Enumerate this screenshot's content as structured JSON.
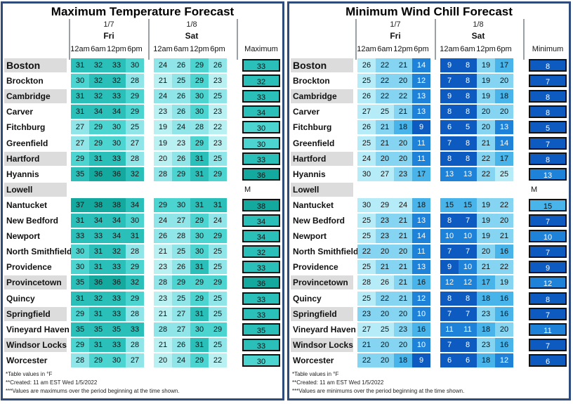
{
  "colors": {
    "max_scale": [
      "#b9f0f2",
      "#8fe5e7",
      "#4cd4d1",
      "#2bbfb9",
      "#14a99f"
    ],
    "min_scale": [
      "#b6ecf8",
      "#84d4f2",
      "#48b4ea",
      "#1e82d9",
      "#0d5bc1"
    ],
    "border": "#2f4b7c"
  },
  "panels": [
    {
      "id": "max",
      "title": "Maximum Temperature Forecast",
      "days": [
        {
          "date": "1/7",
          "name": "Fri"
        },
        {
          "date": "1/8",
          "name": "Sat"
        }
      ],
      "hours": [
        "12am",
        "6am",
        "12pm",
        "6pm",
        "12am",
        "6am",
        "12pm",
        "6pm"
      ],
      "summary_label": "Maximum",
      "footnotes": [
        "*Table values in °F",
        "**Created: 11 am EST Wed 1/5/2022",
        "***Values are maximums over the period beginning at the time shown."
      ]
    },
    {
      "id": "min",
      "title": "Minimum Wind Chill Forecast",
      "days": [
        {
          "date": "1/7",
          "name": "Fri"
        },
        {
          "date": "1/8",
          "name": "Sat"
        }
      ],
      "hours": [
        "12am",
        "6am",
        "12pm",
        "6pm",
        "12am",
        "6am",
        "12pm",
        "6pm"
      ],
      "summary_label": "Minimum",
      "footnotes": [
        "*Table values in °F",
        "**Created: 11 am EST Wed 1/5/2022",
        "***Values are minimums over the period beginning at the time shown."
      ]
    }
  ],
  "chart_data": [
    {
      "type": "table",
      "title": "Maximum Temperature Forecast",
      "columns": [
        "12am",
        "6am",
        "12pm",
        "6pm",
        "12am",
        "6am",
        "12pm",
        "6pm"
      ],
      "summary_column": "Maximum",
      "missing_label": "M",
      "rows": [
        {
          "name": "Boston",
          "values": [
            31,
            32,
            33,
            30,
            24,
            26,
            29,
            26
          ],
          "summary": 33
        },
        {
          "name": "Brockton",
          "values": [
            30,
            32,
            32,
            28,
            21,
            25,
            29,
            23
          ],
          "summary": 32
        },
        {
          "name": "Cambridge",
          "values": [
            31,
            32,
            33,
            29,
            24,
            26,
            30,
            25
          ],
          "summary": 33
        },
        {
          "name": "Carver",
          "values": [
            31,
            34,
            34,
            29,
            23,
            26,
            30,
            23
          ],
          "summary": 34
        },
        {
          "name": "Fitchburg",
          "values": [
            27,
            29,
            30,
            25,
            19,
            24,
            28,
            22
          ],
          "summary": 30
        },
        {
          "name": "Greenfield",
          "values": [
            27,
            29,
            30,
            27,
            19,
            23,
            29,
            23
          ],
          "summary": 30
        },
        {
          "name": "Hartford",
          "values": [
            29,
            31,
            33,
            28,
            20,
            26,
            31,
            25
          ],
          "summary": 33
        },
        {
          "name": "Hyannis",
          "values": [
            35,
            36,
            36,
            32,
            28,
            29,
            31,
            29
          ],
          "summary": 36
        },
        {
          "name": "Lowell",
          "values": null,
          "summary": null
        },
        {
          "name": "Nantucket",
          "values": [
            37,
            38,
            38,
            34,
            29,
            30,
            31,
            31
          ],
          "summary": 38
        },
        {
          "name": "New Bedford",
          "values": [
            31,
            34,
            34,
            30,
            24,
            27,
            29,
            24
          ],
          "summary": 34
        },
        {
          "name": "Newport",
          "values": [
            33,
            33,
            34,
            31,
            26,
            28,
            30,
            29
          ],
          "summary": 34
        },
        {
          "name": "North Smithfield",
          "values": [
            30,
            31,
            32,
            28,
            21,
            25,
            30,
            25
          ],
          "summary": 32
        },
        {
          "name": "Providence",
          "values": [
            30,
            31,
            33,
            29,
            23,
            26,
            31,
            25
          ],
          "summary": 33
        },
        {
          "name": "Provincetown",
          "values": [
            35,
            36,
            36,
            32,
            28,
            29,
            29,
            29
          ],
          "summary": 36
        },
        {
          "name": "Quincy",
          "values": [
            31,
            32,
            33,
            29,
            23,
            25,
            29,
            25
          ],
          "summary": 33
        },
        {
          "name": "Springfield",
          "values": [
            29,
            31,
            33,
            28,
            21,
            27,
            31,
            25
          ],
          "summary": 33
        },
        {
          "name": "Vineyard Haven",
          "values": [
            35,
            35,
            35,
            33,
            28,
            27,
            30,
            29
          ],
          "summary": 35
        },
        {
          "name": "Windsor Locks",
          "values": [
            29,
            31,
            33,
            28,
            21,
            26,
            31,
            25
          ],
          "summary": 33
        },
        {
          "name": "Worcester",
          "values": [
            28,
            29,
            30,
            27,
            20,
            24,
            29,
            22
          ],
          "summary": 30
        }
      ]
    },
    {
      "type": "table",
      "title": "Minimum Wind Chill Forecast",
      "columns": [
        "12am",
        "6am",
        "12pm",
        "6pm",
        "12am",
        "6am",
        "12pm",
        "6pm"
      ],
      "summary_column": "Minimum",
      "missing_label": "M",
      "rows": [
        {
          "name": "Boston",
          "values": [
            26,
            22,
            21,
            14,
            9,
            8,
            19,
            17
          ],
          "summary": 8
        },
        {
          "name": "Brockton",
          "values": [
            25,
            22,
            20,
            12,
            7,
            8,
            19,
            20
          ],
          "summary": 7
        },
        {
          "name": "Cambridge",
          "values": [
            26,
            22,
            22,
            13,
            9,
            8,
            19,
            18
          ],
          "summary": 8
        },
        {
          "name": "Carver",
          "values": [
            27,
            25,
            21,
            13,
            8,
            8,
            20,
            20
          ],
          "summary": 8
        },
        {
          "name": "Fitchburg",
          "values": [
            26,
            21,
            18,
            9,
            6,
            5,
            20,
            13
          ],
          "summary": 5
        },
        {
          "name": "Greenfield",
          "values": [
            25,
            21,
            20,
            11,
            7,
            8,
            21,
            14
          ],
          "summary": 7
        },
        {
          "name": "Hartford",
          "values": [
            24,
            20,
            20,
            11,
            8,
            8,
            22,
            17
          ],
          "summary": 8
        },
        {
          "name": "Hyannis",
          "values": [
            30,
            27,
            23,
            17,
            13,
            13,
            22,
            25
          ],
          "summary": 13
        },
        {
          "name": "Lowell",
          "values": null,
          "summary": null
        },
        {
          "name": "Nantucket",
          "values": [
            30,
            29,
            24,
            18,
            15,
            15,
            19,
            22
          ],
          "summary": 15
        },
        {
          "name": "New Bedford",
          "values": [
            25,
            23,
            21,
            13,
            8,
            7,
            19,
            20
          ],
          "summary": 7
        },
        {
          "name": "Newport",
          "values": [
            25,
            23,
            21,
            14,
            10,
            10,
            19,
            21
          ],
          "summary": 10
        },
        {
          "name": "North Smithfield",
          "values": [
            22,
            20,
            20,
            11,
            7,
            7,
            20,
            16
          ],
          "summary": 7
        },
        {
          "name": "Providence",
          "values": [
            25,
            21,
            21,
            13,
            9,
            10,
            21,
            22
          ],
          "summary": 9
        },
        {
          "name": "Provincetown",
          "values": [
            28,
            26,
            21,
            16,
            12,
            12,
            17,
            19
          ],
          "summary": 12
        },
        {
          "name": "Quincy",
          "values": [
            25,
            22,
            21,
            12,
            8,
            8,
            18,
            16
          ],
          "summary": 8
        },
        {
          "name": "Springfield",
          "values": [
            23,
            20,
            20,
            10,
            7,
            7,
            23,
            16
          ],
          "summary": 7
        },
        {
          "name": "Vineyard Haven",
          "values": [
            27,
            25,
            23,
            16,
            11,
            11,
            18,
            20
          ],
          "summary": 11
        },
        {
          "name": "Windsor Locks",
          "values": [
            21,
            20,
            20,
            10,
            7,
            8,
            23,
            16
          ],
          "summary": 7
        },
        {
          "name": "Worcester",
          "values": [
            22,
            20,
            18,
            9,
            6,
            6,
            18,
            12
          ],
          "summary": 6
        }
      ]
    }
  ]
}
